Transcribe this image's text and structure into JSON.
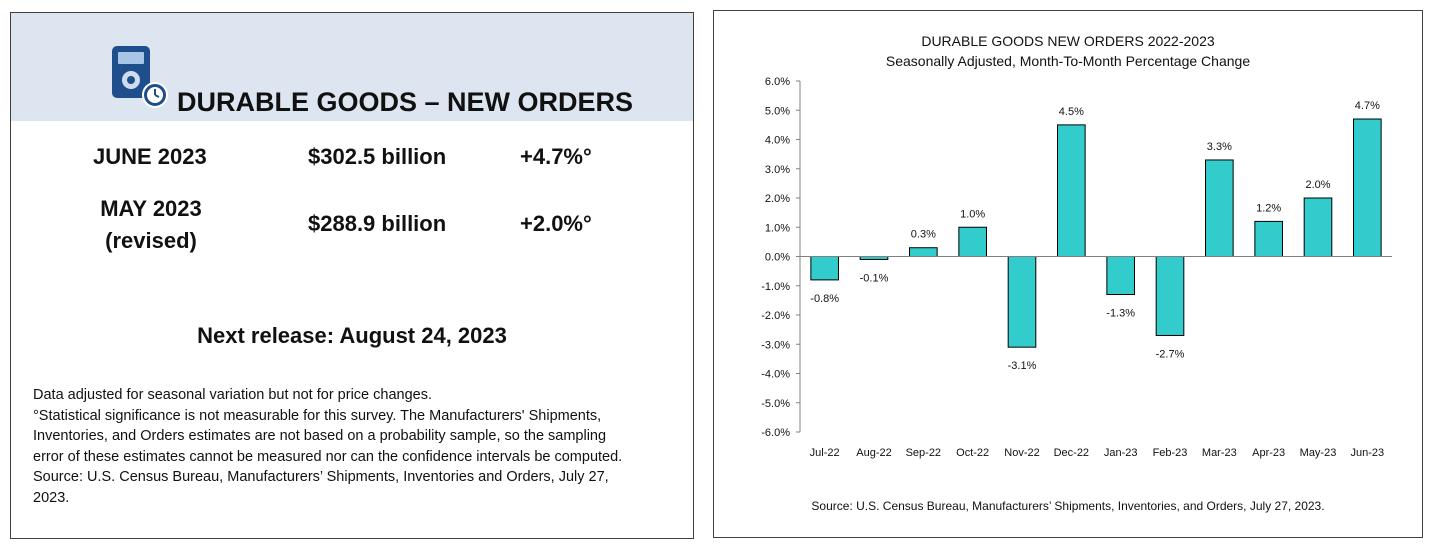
{
  "summary": {
    "title": "DURABLE GOODS – NEW ORDERS",
    "rows": [
      {
        "label": "JUNE 2023",
        "value": "$302.5 billion",
        "change": "+4.7%°"
      },
      {
        "label": "MAY 2023",
        "label_note": "(revised)",
        "value": "$288.9 billion",
        "change": "+2.0%°"
      }
    ],
    "next_release": "Next release: August 24, 2023",
    "footnote_lines": [
      "Data adjusted for seasonal variation but not for price changes.",
      "°Statistical significance is not measurable for this survey.  The Manufacturers' Shipments,",
      "Inventories, and Orders estimates are not based on a probability sample, so the sampling",
      "error of these estimates cannot be measured nor can the confidence intervals be computed.",
      "Source: U.S. Census Bureau, Manufacturers’ Shipments, Inventories and Orders, July 27,",
      "2023."
    ],
    "icon": "calculator-clock-icon"
  },
  "colors": {
    "header_band": "#dde5f0",
    "icon_blue": "#1f4e8c",
    "bar_fill": "#33cccc",
    "bar_stroke": "#000000"
  },
  "chart_data": {
    "type": "bar",
    "title": "DURABLE GOODS NEW ORDERS 2022-2023",
    "subtitle": "Seasonally Adjusted,  Month-To-Month Percentage Change",
    "categories": [
      "Jul-22",
      "Aug-22",
      "Sep-22",
      "Oct-22",
      "Nov-22",
      "Dec-22",
      "Jan-23",
      "Feb-23",
      "Mar-23",
      "Apr-23",
      "May-23",
      "Jun-23"
    ],
    "values": [
      -0.8,
      -0.1,
      0.3,
      1.0,
      -3.1,
      4.5,
      -1.3,
      -2.7,
      3.3,
      1.2,
      2.0,
      4.7
    ],
    "data_labels": [
      "-0.8%",
      "-0.1%",
      "0.3%",
      "1.0%",
      "-3.1%",
      "4.5%",
      "-1.3%",
      "-2.7%",
      "3.3%",
      "1.2%",
      "2.0%",
      "4.7%"
    ],
    "ylim": [
      -6.0,
      6.0
    ],
    "yticks": [
      6.0,
      5.0,
      4.0,
      3.0,
      2.0,
      1.0,
      0.0,
      -1.0,
      -2.0,
      -3.0,
      -4.0,
      -5.0,
      -6.0
    ],
    "ytick_labels": [
      "6.0%",
      "5.0%",
      "4.0%",
      "3.0%",
      "2.0%",
      "1.0%",
      "0.0%",
      "-1.0%",
      "-2.0%",
      "-3.0%",
      "-4.0%",
      "-5.0%",
      "-6.0%"
    ],
    "xlabel": "",
    "ylabel": "",
    "grid": false,
    "legend": "none",
    "source": "Source: U.S. Census Bureau, Manufacturers’ Shipments, Inventories, and Orders, July 27, 2023."
  }
}
